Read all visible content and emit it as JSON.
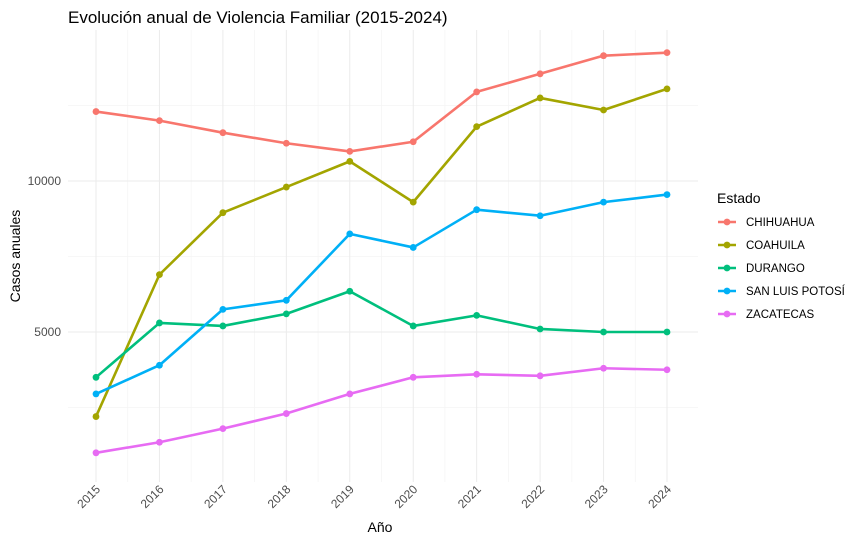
{
  "chart_data": {
    "type": "line",
    "title": "Evolución anual de Violencia Familiar (2015-2024)",
    "xlabel": "Año",
    "ylabel": "Casos anuales",
    "x": [
      2015,
      2016,
      2017,
      2018,
      2019,
      2020,
      2021,
      2022,
      2023,
      2024
    ],
    "x_tick_labels": [
      "2015",
      "2016",
      "2017",
      "2018",
      "2019",
      "2020",
      "2021",
      "2022",
      "2023",
      "2024"
    ],
    "y_ticks": [
      5000,
      10000
    ],
    "y_tick_labels": [
      "5000",
      "10000"
    ],
    "ylim": [
      800,
      15000
    ],
    "grid": true,
    "legend": {
      "title": "Estado",
      "position": "right"
    },
    "series": [
      {
        "name": "CHIHUAHUA",
        "color": "#F8766D",
        "values": [
          12300,
          12000,
          11600,
          11250,
          10980,
          11300,
          12950,
          13550,
          14150,
          14250
        ]
      },
      {
        "name": "COAHUILA",
        "color": "#A3A500",
        "values": [
          2200,
          6900,
          8950,
          9800,
          10650,
          9300,
          11800,
          12750,
          12350,
          13050
        ]
      },
      {
        "name": "DURANGO",
        "color": "#00BF7D",
        "values": [
          3500,
          5300,
          5200,
          5600,
          6350,
          5200,
          5550,
          5100,
          5000,
          5000
        ]
      },
      {
        "name": "SAN LUIS POTOSÍ",
        "color": "#00B0F6",
        "values": [
          2950,
          3900,
          5750,
          6050,
          8250,
          7800,
          9050,
          8850,
          9300,
          9550
        ]
      },
      {
        "name": "ZACATECAS",
        "color": "#E76BF3",
        "values": [
          1000,
          1350,
          1800,
          2300,
          2950,
          3500,
          3600,
          3550,
          3800,
          3750
        ]
      }
    ]
  }
}
